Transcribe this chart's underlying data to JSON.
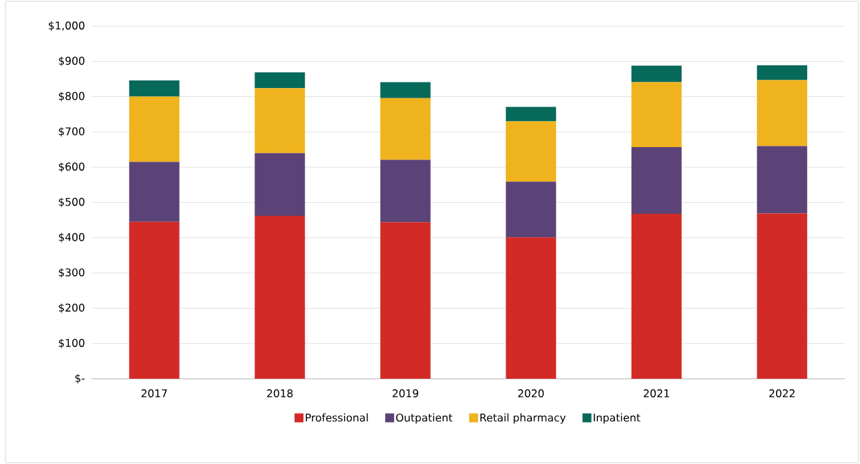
{
  "chart_data": {
    "type": "bar",
    "stacked": true,
    "categories": [
      "2017",
      "2018",
      "2019",
      "2020",
      "2021",
      "2022"
    ],
    "series": [
      {
        "name": "Professional",
        "color": "#d22b27",
        "values": [
          445,
          462,
          444,
          401,
          468,
          469
        ]
      },
      {
        "name": "Outpatient",
        "color": "#5c4377",
        "values": [
          170,
          178,
          177,
          158,
          189,
          191
        ]
      },
      {
        "name": "Retail pharmacy",
        "color": "#efb31d",
        "values": [
          185,
          184,
          175,
          171,
          184,
          187
        ]
      },
      {
        "name": "Inpatient",
        "color": "#06695a",
        "values": [
          46,
          45,
          45,
          41,
          47,
          42
        ]
      }
    ],
    "ylim": [
      0,
      1000
    ],
    "yticks": [
      {
        "value": 0,
        "label": "$-"
      },
      {
        "value": 100,
        "label": "$100"
      },
      {
        "value": 200,
        "label": "$200"
      },
      {
        "value": 300,
        "label": "$300"
      },
      {
        "value": 400,
        "label": "$400"
      },
      {
        "value": 500,
        "label": "$500"
      },
      {
        "value": 600,
        "label": "$600"
      },
      {
        "value": 700,
        "label": "$700"
      },
      {
        "value": 800,
        "label": "$800"
      },
      {
        "value": 900,
        "label": "$900"
      },
      {
        "value": 1000,
        "label": "$1,000"
      }
    ],
    "grid": "y",
    "legend": "bottom"
  }
}
